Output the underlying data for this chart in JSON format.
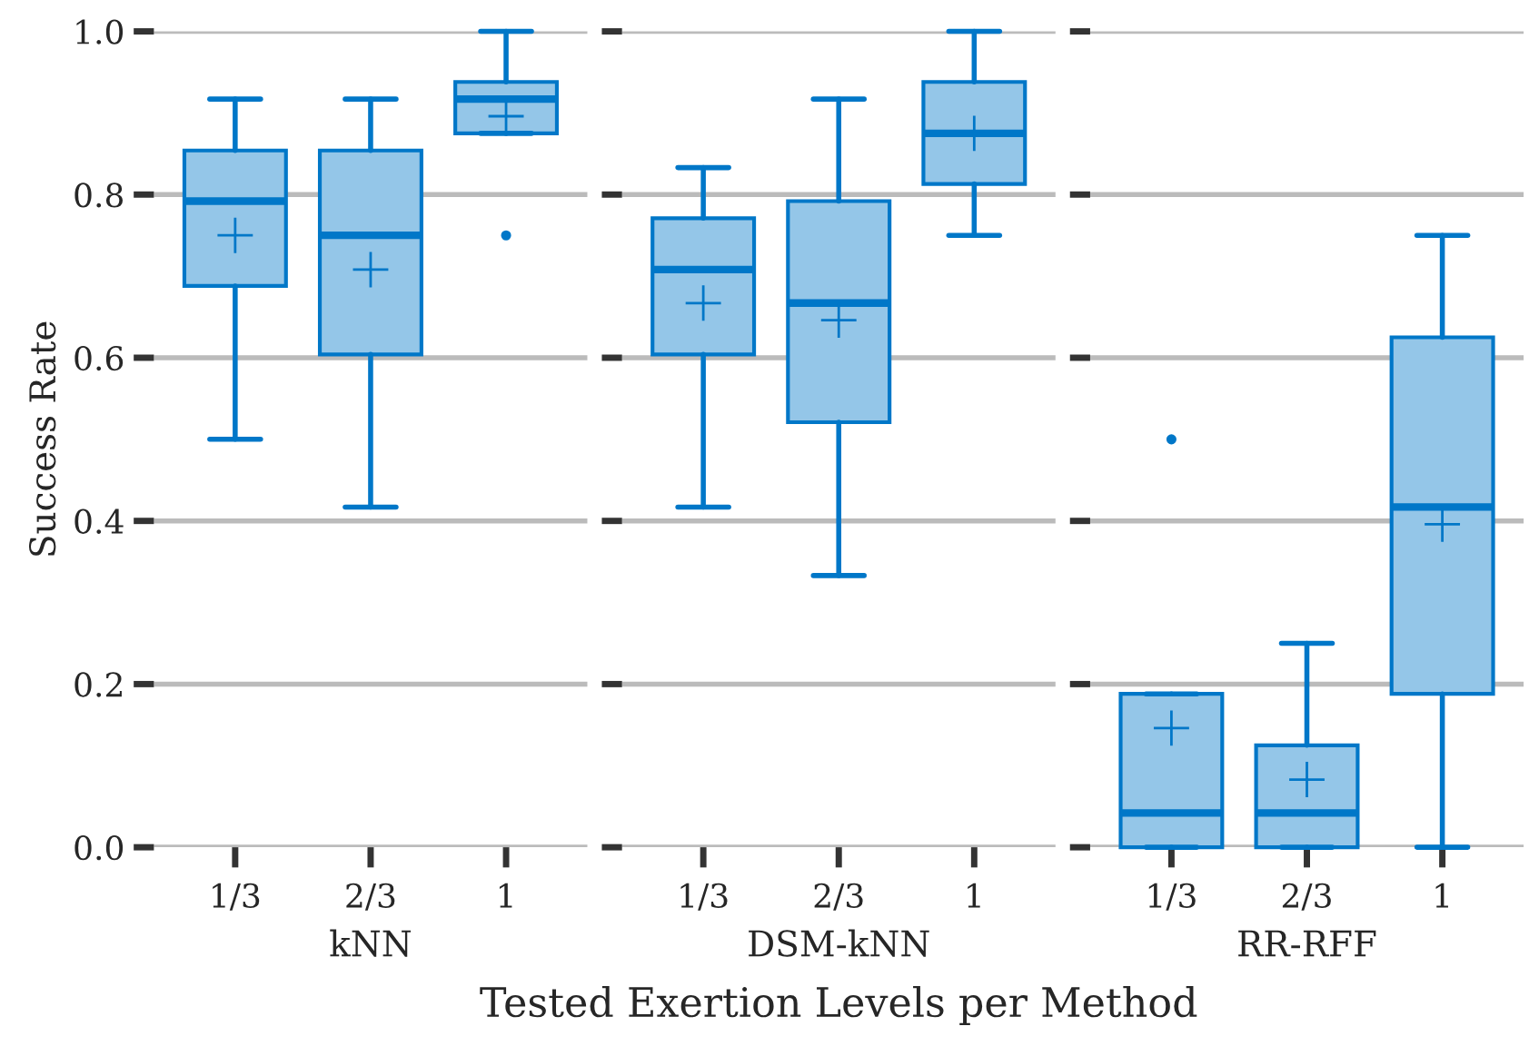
{
  "chart_data": [
    {
      "type": "box",
      "xlabel": "kNN",
      "ylabel": "Success Rate",
      "categories": [
        "1/3",
        "2/3",
        "1"
      ],
      "ylim": [
        0.0,
        1.0
      ],
      "yticks": [
        {
          "value": 0.0,
          "label": "0.0"
        },
        {
          "value": 0.2,
          "label": "0.2"
        },
        {
          "value": 0.4,
          "label": "0.4"
        },
        {
          "value": 0.6,
          "label": "0.6"
        },
        {
          "value": 0.8,
          "label": "0.8"
        },
        {
          "value": 1.0,
          "label": "1.0"
        }
      ],
      "grid": "y",
      "color": "#0077c8",
      "boxes": [
        {
          "low": 0.5,
          "q1": 0.688,
          "median": 0.792,
          "q3": 0.854,
          "high": 0.917,
          "mean": 0.75
        },
        {
          "low": 0.417,
          "q1": 0.604,
          "median": 0.75,
          "q3": 0.854,
          "high": 0.917,
          "mean": 0.708
        },
        {
          "low": 0.875,
          "q1": 0.875,
          "median": 0.917,
          "q3": 0.938,
          "high": 1.0,
          "mean": 0.896,
          "outliers": [
            0.75
          ]
        }
      ],
      "annotations": [
        "Tested Exertion Levels per Method"
      ]
    },
    {
      "type": "box",
      "xlabel": "DSM-kNN",
      "categories": [
        "1/3",
        "2/3",
        "1"
      ],
      "ylim": [
        0.0,
        1.0
      ],
      "yticks": [
        {
          "value": 0.0,
          "label": null
        },
        {
          "value": 0.2,
          "label": null
        },
        {
          "value": 0.4,
          "label": null
        },
        {
          "value": 0.6,
          "label": null
        },
        {
          "value": 0.8,
          "label": null
        },
        {
          "value": 1.0,
          "label": null
        }
      ],
      "grid": "y",
      "tick_labels": "x",
      "color": "#0077c8",
      "boxes": [
        {
          "low": 0.417,
          "q1": 0.604,
          "median": 0.708,
          "q3": 0.771,
          "high": 0.833,
          "mean": 0.667
        },
        {
          "low": 0.333,
          "q1": 0.521,
          "median": 0.667,
          "q3": 0.792,
          "high": 0.917,
          "mean": 0.646
        },
        {
          "low": 0.75,
          "q1": 0.813,
          "median": 0.875,
          "q3": 0.938,
          "high": 1.0,
          "mean": 0.875
        }
      ]
    },
    {
      "type": "box",
      "xlabel": "RR-RFF",
      "categories": [
        "1/3",
        "2/3",
        "1"
      ],
      "ylim": [
        0.0,
        1.0
      ],
      "yticks": [
        {
          "value": 0.0,
          "label": null
        },
        {
          "value": 0.2,
          "label": null
        },
        {
          "value": 0.4,
          "label": null
        },
        {
          "value": 0.6,
          "label": null
        },
        {
          "value": 0.8,
          "label": null
        },
        {
          "value": 1.0,
          "label": null
        }
      ],
      "grid": "y",
      "tick_labels": "x",
      "color": "#0077c8",
      "boxes": [
        {
          "low": 0.0,
          "q1": 0.0,
          "median": 0.042,
          "q3": 0.188,
          "high": 0.188,
          "mean": 0.146,
          "outliers": [
            0.5
          ]
        },
        {
          "low": 0.0,
          "q1": 0.0,
          "median": 0.042,
          "q3": 0.125,
          "high": 0.25,
          "mean": 0.083
        },
        {
          "low": 0.0,
          "q1": 0.188,
          "median": 0.417,
          "q3": 0.625,
          "high": 0.75,
          "mean": 0.396
        }
      ]
    }
  ]
}
